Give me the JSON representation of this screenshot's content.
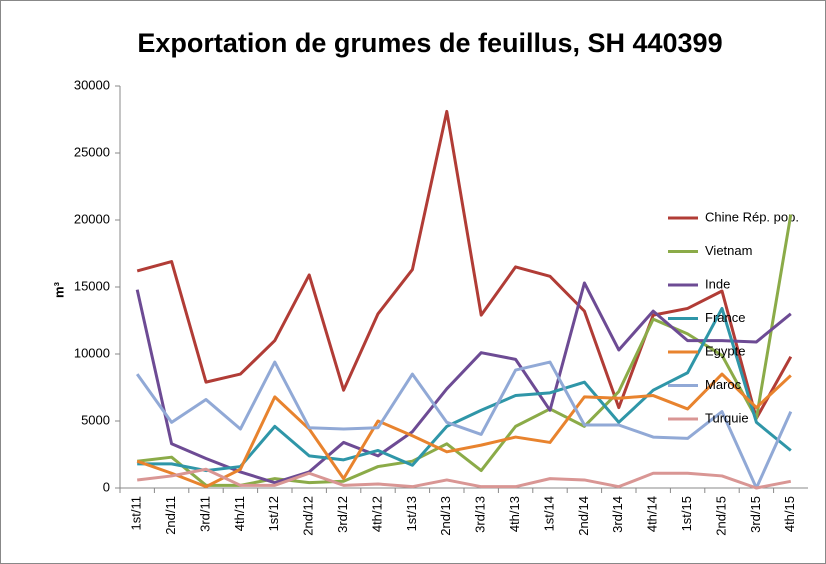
{
  "chart_data": {
    "type": "line",
    "title": "Exportation de grumes de feuillus, SH 440399",
    "y_label": "m³",
    "categories": [
      "1st/11",
      "2nd/11",
      "3rd/11",
      "4th/11",
      "1st/12",
      "2nd/12",
      "3rd/12",
      "4th/12",
      "1st/13",
      "2nd/13",
      "3rd/13",
      "4th/13",
      "1st/14",
      "2nd/14",
      "3rd/14",
      "4th/14",
      "1st/15",
      "2nd/15",
      "3rd/15",
      "4th/15"
    ],
    "series": [
      {
        "name": "Chine Rép. pop.",
        "color": "#b13c36",
        "values": [
          16200,
          16900,
          7900,
          8500,
          11000,
          15900,
          7300,
          13000,
          16300,
          28100,
          12900,
          16500,
          15800,
          13200,
          6000,
          12900,
          13400,
          14700,
          5200,
          9800
        ]
      },
      {
        "name": "Vietnam",
        "color": "#8bab48",
        "values": [
          2000,
          2300,
          200,
          200,
          700,
          400,
          500,
          1600,
          2000,
          3300,
          1300,
          4600,
          5900,
          4600,
          7200,
          12600,
          11500,
          9900,
          5200,
          20400
        ]
      },
      {
        "name": "Inde",
        "color": "#6d4b94",
        "values": [
          14800,
          3300,
          2200,
          1200,
          400,
          1200,
          3400,
          2400,
          4200,
          7400,
          10100,
          9600,
          5800,
          15300,
          10300,
          13200,
          11000,
          11000,
          10900,
          13000
        ]
      },
      {
        "name": "France",
        "color": "#2f96a8",
        "values": [
          1800,
          1800,
          1300,
          1600,
          4600,
          2400,
          2100,
          2800,
          1700,
          4600,
          5800,
          6900,
          7100,
          7900,
          4900,
          7300,
          8600,
          13400,
          4900,
          2800
        ]
      },
      {
        "name": "Egypte",
        "color": "#e8832e",
        "values": [
          2000,
          1100,
          100,
          1400,
          6800,
          4400,
          700,
          5000,
          3900,
          2700,
          3200,
          3800,
          3400,
          6800,
          6700,
          6900,
          5900,
          8500,
          6000,
          8400
        ]
      },
      {
        "name": "Maroc",
        "color": "#91a9d6",
        "values": [
          8500,
          4900,
          6600,
          4400,
          9400,
          4500,
          4400,
          4500,
          8500,
          4900,
          4000,
          8800,
          9400,
          4700,
          4700,
          3800,
          3700,
          5700,
          0,
          5700
        ]
      },
      {
        "name": "Turquie",
        "color": "#d99694",
        "values": [
          600,
          900,
          1400,
          200,
          200,
          1100,
          200,
          300,
          100,
          600,
          100,
          100,
          700,
          600,
          100,
          1100,
          1100,
          900,
          0,
          500
        ]
      }
    ],
    "ylim": [
      0,
      30000
    ],
    "yticks": [
      0,
      5000,
      10000,
      15000,
      20000,
      25000,
      30000
    ],
    "grid": false,
    "legend": "right"
  }
}
